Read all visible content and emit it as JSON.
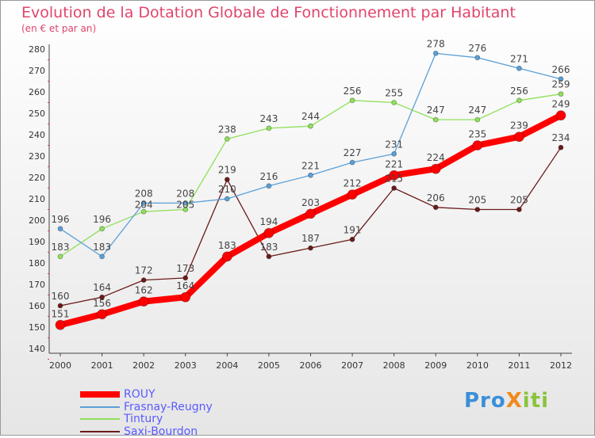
{
  "title": "Evolution de la Dotation Globale de Fonctionnement par Habitant",
  "subtitle": "(en € et par an)",
  "logo": "ProXiti",
  "chart_data": {
    "type": "line",
    "title": "Evolution de la Dotation Globale de Fonctionnement par Habitant",
    "ylabel": "(en € et par an)",
    "x": [
      2000,
      2001,
      2002,
      2003,
      2004,
      2005,
      2006,
      2007,
      2008,
      2009,
      2010,
      2011,
      2012
    ],
    "ylim": [
      140,
      280
    ],
    "yticks": [
      140,
      150,
      160,
      170,
      180,
      190,
      200,
      210,
      220,
      230,
      240,
      250,
      260,
      270,
      280
    ],
    "grid": false,
    "legend_placement": "bottom-left",
    "series": [
      {
        "name": "ROUY",
        "color": "#ff0000",
        "values": [
          151,
          156,
          162,
          164,
          183,
          194,
          203,
          212,
          221,
          224,
          235,
          239,
          249
        ]
      },
      {
        "name": "Frasnay-Reugny",
        "color": "#5aa0d8",
        "values": [
          196,
          183,
          208,
          208,
          210,
          216,
          221,
          227,
          231,
          278,
          276,
          271,
          266
        ]
      },
      {
        "name": "Tintury",
        "color": "#8ee05a",
        "values": [
          183,
          196,
          204,
          205,
          238,
          243,
          244,
          256,
          255,
          247,
          247,
          256,
          259
        ]
      },
      {
        "name": "Saxi-Bourdon",
        "color": "#6b1a1a",
        "values": [
          160,
          164,
          172,
          173,
          219,
          183,
          187,
          191,
          215,
          206,
          205,
          205,
          234
        ]
      }
    ]
  }
}
